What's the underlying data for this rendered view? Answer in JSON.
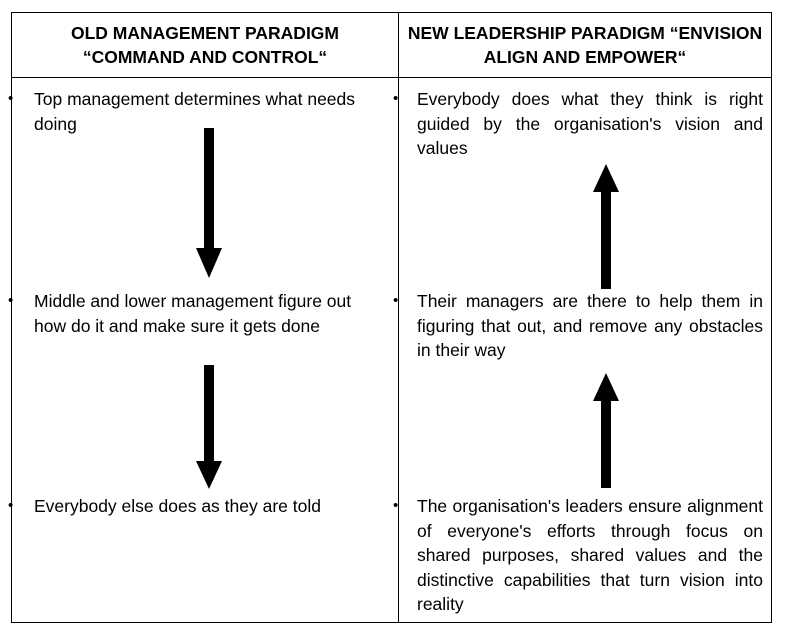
{
  "table": {
    "old": {
      "header_line1": "OLD MANAGEMENT PARADIGM",
      "header_line2": "“COMMAND AND CONTROL“",
      "items": [
        "Top management determines what needs doing",
        "Middle and lower management figure out how do it and make sure it gets done",
        "Everybody else does as they are told"
      ],
      "arrow_direction": "down"
    },
    "new": {
      "header_line1": "NEW LEADERSHIP PARADIGM “ENVISION",
      "header_line2": "ALIGN AND EMPOWER“",
      "items": [
        "Everybody does what they think is right guided by the organisation's vision and values",
        "Their managers are there to help them in figuring that out, and remove any obstacles in their way",
        "The organisation's leaders ensure alignment of everyone's efforts through focus on shared purposes, shared values and the distinctive capabilities that turn vision into reality"
      ],
      "arrow_direction": "up"
    },
    "bullet_char": "•",
    "colors": {
      "line": "#000000",
      "background": "#ffffff",
      "text": "#000000"
    }
  }
}
